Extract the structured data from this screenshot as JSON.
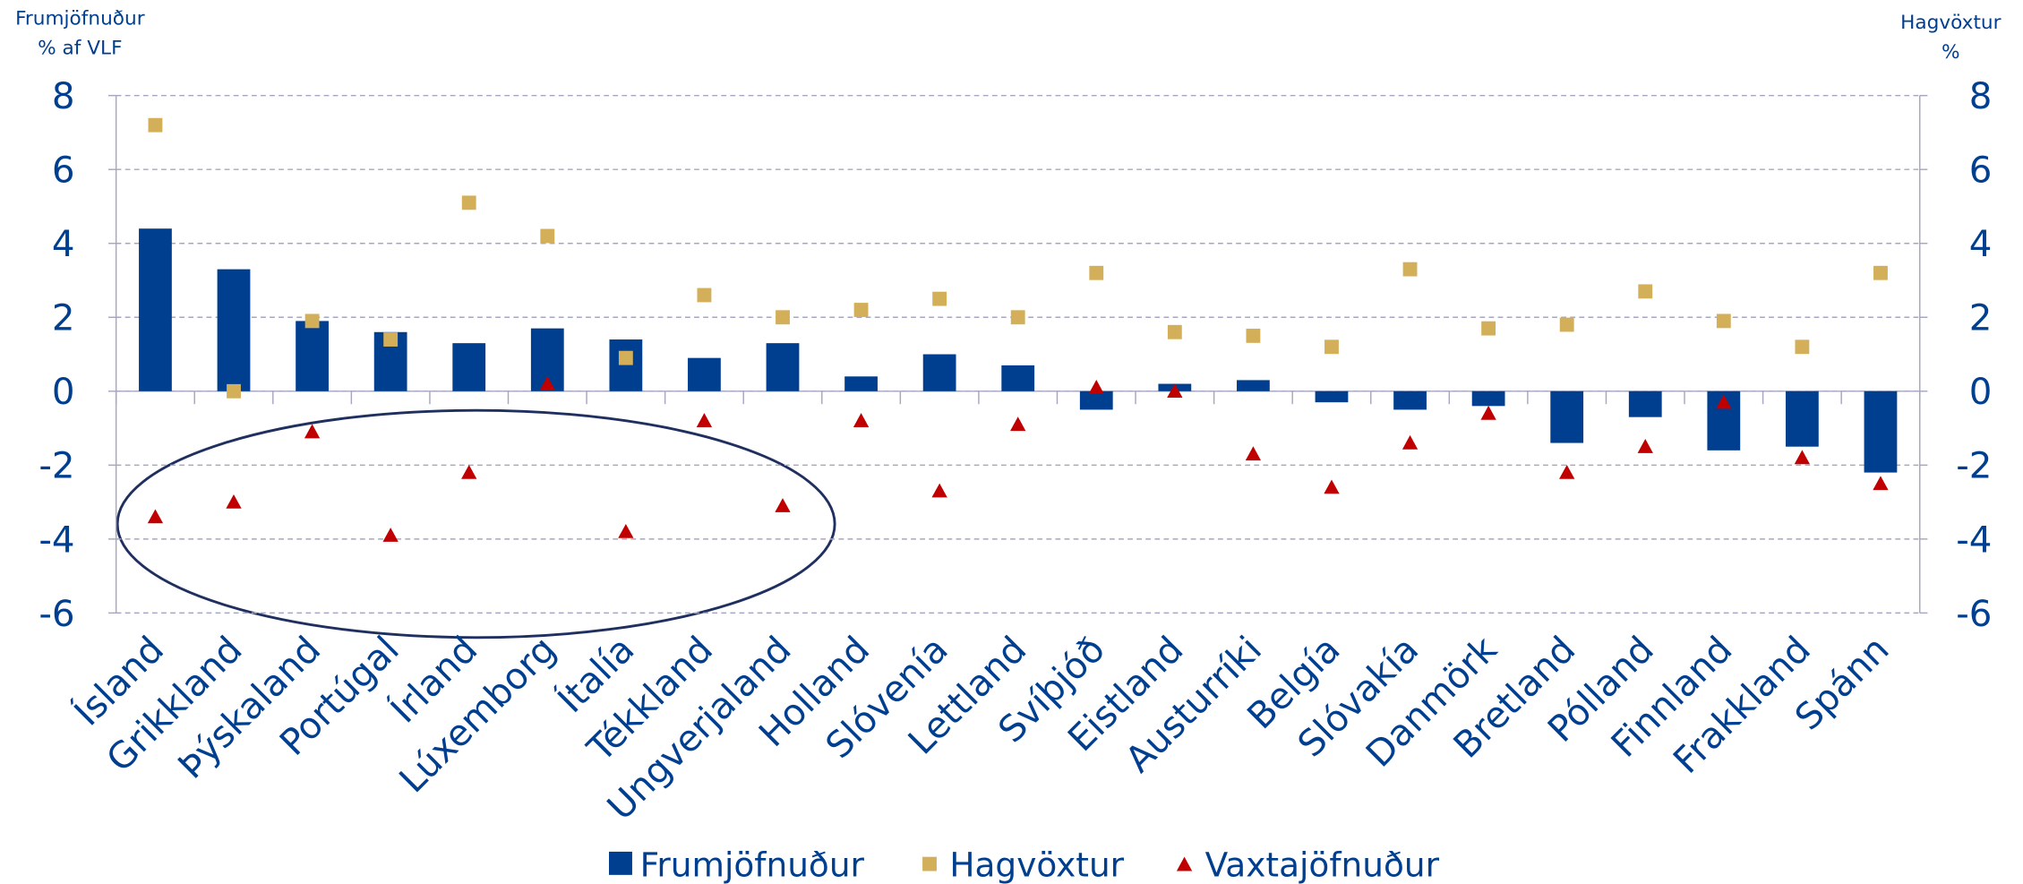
{
  "chart_data": {
    "type": "bar",
    "y_label": [
      "Frumjöfnuður",
      "% af VLF"
    ],
    "y2_label": [
      "Hagvöxtur",
      "%"
    ],
    "categories": [
      "Ísland",
      "Grikkland",
      "Þýskaland",
      "Portúgal",
      "Írland",
      "Lúxemborg",
      "Ítalía",
      "Tékkland",
      "Ungverjaland",
      "Holland",
      "Slóvenía",
      "Lettland",
      "Svíþjóð",
      "Eistland",
      "Austurríki",
      "Belgía",
      "Slóvakía",
      "Danmörk",
      "Bretland",
      "Pólland",
      "Finnland",
      "Frakkland",
      "Spánn"
    ],
    "series": [
      {
        "name": "Frumjöfnuður",
        "type": "bar",
        "color": "#003f8f",
        "values": [
          4.4,
          3.3,
          1.9,
          1.6,
          1.3,
          1.7,
          1.4,
          0.9,
          1.3,
          0.4,
          1.0,
          0.7,
          -0.5,
          0.2,
          0.3,
          -0.3,
          -0.5,
          -0.4,
          -1.4,
          -0.7,
          -1.6,
          -1.5,
          -2.2
        ]
      },
      {
        "name": "Hagvöxtur",
        "type": "square",
        "axis": "y2",
        "color": "#d4af5a",
        "values": [
          7.2,
          0.0,
          1.9,
          1.4,
          5.1,
          4.2,
          0.9,
          2.6,
          2.0,
          2.2,
          2.5,
          2.0,
          3.2,
          1.6,
          1.5,
          1.2,
          3.3,
          1.7,
          1.8,
          2.7,
          1.9,
          1.2,
          3.2
        ]
      },
      {
        "name": "Vaxtajöfnuður",
        "type": "triangle",
        "color": "#c00000",
        "values": [
          -3.4,
          -3.0,
          -1.1,
          -3.9,
          -2.2,
          0.2,
          -3.8,
          -0.8,
          -3.1,
          -0.8,
          -2.7,
          -0.9,
          0.1,
          0.0,
          -1.7,
          -2.6,
          -1.4,
          -0.6,
          -2.2,
          -1.5,
          -0.3,
          -1.8,
          -2.5
        ]
      }
    ],
    "ylim": [
      -6,
      8
    ],
    "yticks": [
      -6,
      -4,
      -2,
      0,
      2,
      4,
      6,
      8
    ],
    "y2lim": [
      -6,
      8
    ],
    "y2ticks": [
      -6,
      -4,
      -2,
      0,
      2,
      4,
      6,
      8
    ],
    "grid": true,
    "legend": "bottom"
  }
}
